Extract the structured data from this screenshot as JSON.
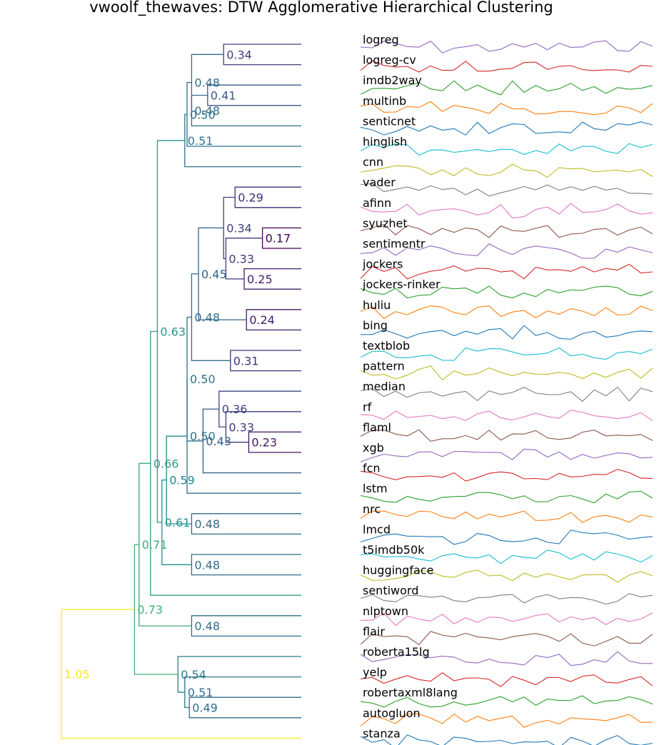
{
  "chart_data": {
    "type": "dendrogram",
    "title": "vwoolf_thewaves: DTW Agglomerative Hierarchical Clustering",
    "leaves": [
      "logreg",
      "logreg-cv",
      "imdb2way",
      "multinb",
      "senticnet",
      "hinglish",
      "cnn",
      "vader",
      "afinn",
      "syuzhet",
      "sentimentr",
      "jockers",
      "jockers-rinker",
      "huliu",
      "bing",
      "textblob",
      "pattern",
      "median",
      "rf",
      "flaml",
      "xgb",
      "fcn",
      "lstm",
      "nrc",
      "lmcd",
      "t5imdb50k",
      "huggingface",
      "sentiword",
      "nlptown",
      "flair",
      "roberta15lg",
      "yelp",
      "robertaxml8lang",
      "autogluon",
      "stanza"
    ],
    "merges": [
      {
        "a": "L0",
        "b": "L1",
        "h": 0.34
      },
      {
        "a": "L2",
        "b": "L3",
        "h": 0.41
      },
      {
        "a": "m1",
        "b": "L4",
        "h": 0.48
      },
      {
        "a": "m0",
        "b": "m2",
        "h": 0.48
      },
      {
        "a": "m3",
        "b": "L5",
        "h": 0.5
      },
      {
        "a": "m4",
        "b": "L6",
        "h": 0.51
      },
      {
        "a": "L7",
        "b": "L8",
        "h": 0.29
      },
      {
        "a": "L9",
        "b": "L10",
        "h": 0.17
      },
      {
        "a": "L11",
        "b": "L12",
        "h": 0.25
      },
      {
        "a": "m7",
        "b": "m8",
        "h": 0.33
      },
      {
        "a": "m6",
        "b": "m9",
        "h": 0.34
      },
      {
        "a": "L13",
        "b": "L14",
        "h": 0.24
      },
      {
        "a": "m10",
        "b": "m11",
        "h": 0.45
      },
      {
        "a": "L15",
        "b": "L16",
        "h": 0.31
      },
      {
        "a": "m12",
        "b": "m13",
        "h": 0.48
      },
      {
        "a": "L19",
        "b": "L20",
        "h": 0.23
      },
      {
        "a": "L18",
        "b": "m15",
        "h": 0.33
      },
      {
        "a": "L17",
        "b": "m16",
        "h": 0.36
      },
      {
        "a": "m17",
        "b": "L21",
        "h": 0.43
      },
      {
        "a": "m14",
        "b": "m18",
        "h": 0.5
      },
      {
        "a": "m19",
        "b": "L22",
        "h": 0.5
      },
      {
        "a": "L23",
        "b": "L24",
        "h": 0.48
      },
      {
        "a": "m20",
        "b": "m21",
        "h": 0.59
      },
      {
        "a": "L25",
        "b": "L26",
        "h": 0.48
      },
      {
        "a": "m22",
        "b": "m23",
        "h": 0.61
      },
      {
        "a": "m5",
        "b": "m24",
        "h": 0.63
      },
      {
        "a": "m25",
        "b": "L27",
        "h": 0.66
      },
      {
        "a": "L28",
        "b": "L29",
        "h": 0.48
      },
      {
        "a": "m26",
        "b": "m27",
        "h": 0.71
      },
      {
        "a": "L32",
        "b": "L33",
        "h": 0.49
      },
      {
        "a": "L31",
        "b": "m29",
        "h": 0.51
      },
      {
        "a": "L30",
        "b": "m30",
        "h": 0.54
      },
      {
        "a": "m28",
        "b": "m31",
        "h": 0.73
      },
      {
        "a": "m32",
        "b": "L34",
        "h": 1.05
      }
    ],
    "colormap": {
      "domain": [
        0.17,
        1.05
      ],
      "stops": [
        "#440154",
        "#3b528b",
        "#21918c",
        "#5ec962",
        "#fde725"
      ]
    },
    "series_palette": [
      "#9467bd",
      "#d62728",
      "#2ca02c",
      "#ff7f0e",
      "#1f77b4",
      "#17becf",
      "#bcbd22",
      "#7f7f7f",
      "#e377c2",
      "#8c564b"
    ]
  }
}
